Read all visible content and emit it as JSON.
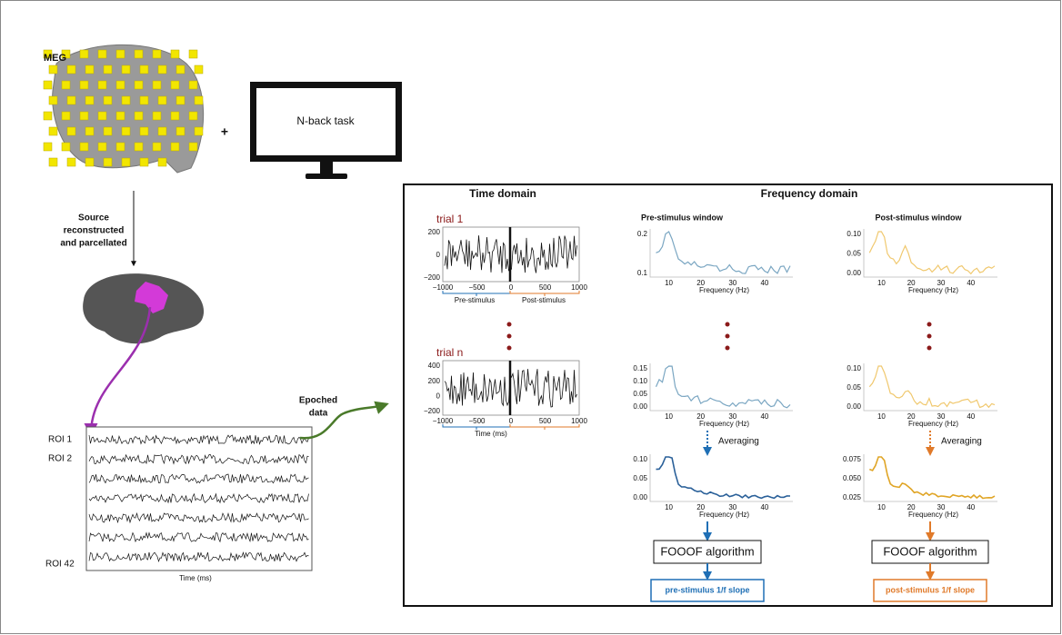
{
  "meg_label": "MEG",
  "plus": "+",
  "monitor_label": "N-back task",
  "source_label": [
    "Source",
    "reconstructed",
    "and parcellated"
  ],
  "roi_labels": [
    "ROI 1",
    "ROI 2",
    "ROI 42"
  ],
  "roi_x_label": "Time (ms)",
  "epoched_label": [
    "Epoched",
    "data"
  ],
  "panel": {
    "time_title": "Time domain",
    "freq_title": "Frequency domain",
    "trials": [
      {
        "label": "trial 1",
        "yticks": [
          "200",
          "0",
          "−200"
        ],
        "xticks": [
          "−1000",
          "−500",
          "0",
          "500",
          "1000"
        ],
        "pre": "Pre-stimulus",
        "post": "Post-stimulus"
      },
      {
        "label": "trial n",
        "yticks": [
          "400",
          "200",
          "0",
          "−200"
        ],
        "xticks": [
          "−1000",
          "−500",
          "0",
          "500",
          "1000"
        ],
        "x_label": "Time (ms)"
      }
    ],
    "pre": {
      "title": "Pre-stimulus window",
      "plots": [
        {
          "yticks": [
            "0.2",
            "0.1"
          ],
          "xticks": [
            "10",
            "20",
            "30",
            "40"
          ],
          "x_label": "Frequency (Hz)"
        },
        {
          "yticks": [
            "0.15",
            "0.10",
            "0.05",
            "0.00"
          ],
          "xticks": [
            "10",
            "20",
            "30",
            "40"
          ],
          "x_label": "Frequency (Hz)"
        },
        {
          "yticks": [
            "0.10",
            "0.05",
            "0.00"
          ],
          "xticks": [
            "10",
            "20",
            "30",
            "40"
          ],
          "x_label": "Frequency (Hz)"
        }
      ],
      "averaging": "Averaging",
      "algorithm": "FOOOF algorithm",
      "result": "pre-stimulus 1/f slope"
    },
    "post": {
      "title": "Post-stimulus window",
      "plots": [
        {
          "yticks": [
            "0.10",
            "0.05",
            "0.00"
          ],
          "xticks": [
            "10",
            "20",
            "30",
            "40"
          ],
          "x_label": "Frequency (Hz)"
        },
        {
          "yticks": [
            "0.10",
            "0.05",
            "0.00"
          ],
          "xticks": [
            "10",
            "20",
            "30",
            "40"
          ],
          "x_label": "Frequency (Hz)"
        },
        {
          "yticks": [
            "0.075",
            "0.050",
            "0.025"
          ],
          "xticks": [
            "10",
            "20",
            "30",
            "40"
          ],
          "x_label": "Frequency (Hz)"
        }
      ],
      "averaging": "Averaging",
      "algorithm": "FOOOF algorithm",
      "result": "post-stimulus 1/f slope"
    }
  }
}
